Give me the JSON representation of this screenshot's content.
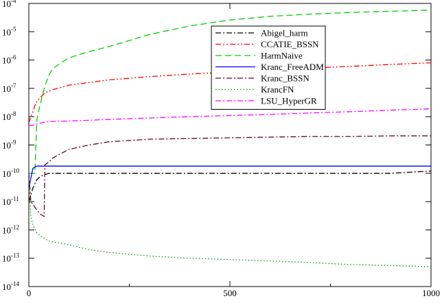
{
  "chart_data": {
    "type": "line",
    "title": "",
    "xlabel": "",
    "ylabel": "",
    "xlim": [
      0,
      1000
    ],
    "ylim_exponent": [
      -14,
      -4
    ],
    "yscale": "log",
    "grid": false,
    "legend_position": "top-right",
    "x_ticks": [
      0,
      500,
      1000
    ],
    "y_ticks": [
      {
        "base": "10",
        "exp": "-14"
      },
      {
        "base": "10",
        "exp": "-13"
      },
      {
        "base": "10",
        "exp": "-12"
      },
      {
        "base": "10",
        "exp": "-11"
      },
      {
        "base": "10",
        "exp": "-10"
      },
      {
        "base": "10",
        "exp": "-9"
      },
      {
        "base": "10",
        "exp": "-8"
      },
      {
        "base": "10",
        "exp": "-7"
      },
      {
        "base": "10",
        "exp": "-6"
      },
      {
        "base": "10",
        "exp": "-5"
      },
      {
        "base": "10",
        "exp": "-4"
      }
    ],
    "series": [
      {
        "name": "Abigel_harm",
        "color": "#000000",
        "dash": "dashdot",
        "x": [
          0,
          10,
          20,
          30,
          40,
          50,
          100,
          200,
          300,
          400,
          500,
          600,
          700,
          800,
          900,
          1000
        ],
        "y": [
          1e-11,
          3e-11,
          6e-11,
          8e-11,
          9e-11,
          1e-10,
          1e-10,
          1e-10,
          1e-10,
          1e-10,
          1e-10,
          1e-10,
          1e-10,
          1e-10,
          1e-10,
          1.2e-10
        ]
      },
      {
        "name": "CCATIE_BSSN",
        "color": "#ff0000",
        "dash": "dashdotdot",
        "x": [
          0,
          5,
          10,
          15,
          20,
          30,
          40,
          60,
          100,
          200,
          300,
          400,
          500,
          600,
          700,
          800,
          900,
          1000
        ],
        "y": [
          6e-09,
          1e-08,
          1.5e-08,
          2.5e-08,
          3.5e-08,
          5e-08,
          7e-08,
          9e-08,
          1.3e-07,
          2e-07,
          2.6e-07,
          3.2e-07,
          3.8e-07,
          4.5e-07,
          5.2e-07,
          6e-07,
          7e-07,
          8e-07
        ]
      },
      {
        "name": "HarmNaive",
        "color": "#00cc00",
        "dash": "dashed",
        "x": [
          0,
          10,
          15,
          20,
          30,
          40,
          50,
          60,
          80,
          100,
          150,
          200,
          300,
          400,
          500,
          600,
          700,
          800,
          900,
          1000
        ],
        "y": [
          1e-10,
          1e-10,
          1e-10,
          8e-09,
          3.5e-08,
          1.2e-07,
          3e-07,
          5e-07,
          8e-07,
          1.2e-06,
          2e-06,
          3e-06,
          8e-06,
          1.6e-05,
          2.6e-05,
          3.5e-05,
          4.2e-05,
          4.8e-05,
          5.3e-05,
          5.8e-05
        ]
      },
      {
        "name": "Kranc_FreeADM",
        "color": "#0000ff",
        "dash": "solid",
        "x": [
          0,
          10,
          20,
          30,
          40,
          50,
          100,
          200,
          300,
          400,
          500,
          600,
          700,
          800,
          900,
          1000
        ],
        "y": [
          3e-11,
          1.5e-10,
          1.8e-10,
          1.8e-10,
          1.8e-10,
          1.8e-10,
          1.8e-10,
          1.8e-10,
          1.8e-10,
          1.8e-10,
          1.8e-10,
          1.8e-10,
          1.8e-10,
          1.8e-10,
          1.8e-10,
          1.8e-10
        ]
      },
      {
        "name": "Kranc_BSSN",
        "color": "#660033",
        "dash": "dashdot",
        "x": [
          0,
          5,
          10,
          20,
          30,
          38,
          40,
          50,
          60,
          80,
          100,
          150,
          200,
          300,
          400,
          500,
          600,
          700,
          800,
          900,
          1000
        ],
        "y": [
          1e-10,
          1e-11,
          8e-12,
          5e-12,
          3.5e-12,
          3e-12,
          2e-10,
          2.5e-10,
          3.5e-10,
          5e-10,
          7e-10,
          1e-09,
          1.3e-09,
          1.6e-09,
          1.7e-09,
          1.8e-09,
          1.9e-09,
          2e-09,
          2e-09,
          2.1e-09,
          2.1e-09
        ]
      },
      {
        "name": "KrancFN",
        "color": "#009900",
        "dash": "dotted",
        "x": [
          0,
          5,
          10,
          20,
          30,
          50,
          100,
          150,
          200,
          300,
          400,
          500,
          600,
          700,
          800,
          900,
          1000
        ],
        "y": [
          7e-11,
          3e-12,
          1.5e-12,
          8e-13,
          6e-13,
          4e-13,
          3e-13,
          2e-13,
          1.6e-13,
          1.2e-13,
          1e-13,
          9e-14,
          8e-14,
          7e-14,
          6e-14,
          5.5e-14,
          5e-14
        ]
      },
      {
        "name": "LSU_HyperGR",
        "color": "#ff00ff",
        "dash": "dashdot",
        "x": [
          0,
          10,
          20,
          30,
          40,
          60,
          100,
          150,
          200,
          300,
          400,
          500,
          600,
          700,
          800,
          900,
          1000
        ],
        "y": [
          5e-09,
          5e-09,
          5.5e-09,
          6e-09,
          6.5e-09,
          6.8e-09,
          7e-09,
          7.5e-09,
          8e-09,
          9e-09,
          1e-08,
          1.1e-08,
          1.2e-08,
          1.35e-08,
          1.5e-08,
          1.7e-08,
          1.9e-08
        ]
      }
    ]
  }
}
